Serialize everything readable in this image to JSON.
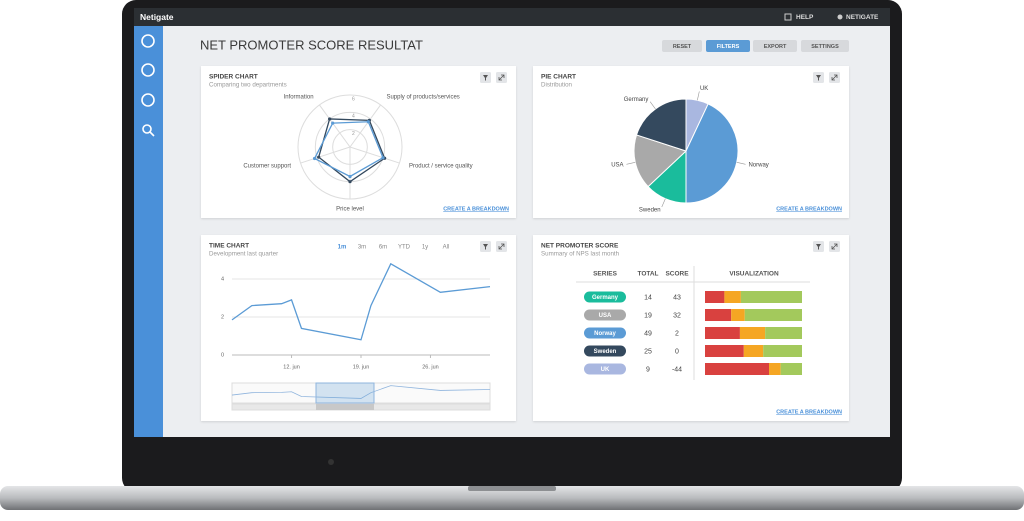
{
  "header": {
    "brand": "Netigate",
    "help": "HELP",
    "user": "NETIGATE"
  },
  "page_title": "NET PROMOTER SCORE RESULTAT",
  "toolbar": [
    "RESET",
    "FILTERS",
    "EXPORT",
    "SETTINGS"
  ],
  "chart_data": [
    {
      "type": "radar",
      "title": "SPIDER CHART",
      "subtitle": "Comparing two departments",
      "categories": [
        "Information",
        "Supply of products/services",
        "Product / service quality",
        "Price level",
        "Customer support"
      ],
      "ylim": [
        0,
        6
      ],
      "yticks": [
        2,
        4,
        6
      ],
      "series": [
        {
          "color": "#34495e",
          "values": [
            4.0,
            3.8,
            4.2,
            4.0,
            3.8
          ]
        },
        {
          "color": "#5b9bd5",
          "values": [
            3.4,
            3.6,
            4.0,
            3.4,
            4.3
          ]
        }
      ],
      "link": "CREATE A BREAKDOWN"
    },
    {
      "type": "pie",
      "title": "PIE CHART",
      "subtitle": "Distribution",
      "categories": [
        "UK",
        "Norway",
        "Sweden",
        "USA",
        "Germany"
      ],
      "values": [
        7,
        43,
        13,
        17,
        20
      ],
      "colors": [
        "#a9b7e0",
        "#5b9bd5",
        "#1abc9c",
        "#a9a9a9",
        "#34495e"
      ],
      "link": "CREATE A BREAKDOWN"
    },
    {
      "type": "line",
      "title": "TIME CHART",
      "subtitle": "Development last quarter",
      "ranges": [
        "1m",
        "3m",
        "6m",
        "YTD",
        "1y",
        "All"
      ],
      "active_range": 0,
      "x": [
        6,
        8,
        11,
        12,
        13,
        19,
        20,
        22,
        27,
        32
      ],
      "values": [
        1.85,
        2.6,
        2.7,
        2.9,
        1.4,
        0.8,
        2.6,
        4.8,
        3.3,
        3.6
      ],
      "xlim": [
        6,
        32
      ],
      "xticks": [
        {
          "value": 12,
          "label": "12. jun"
        },
        {
          "value": 19,
          "label": "19. jun"
        },
        {
          "value": 26,
          "label": "26. jun"
        }
      ],
      "ylim": [
        0,
        5
      ],
      "yticks": [
        0,
        2,
        4
      ],
      "color": "#5b9bd5",
      "grid": true
    },
    {
      "type": "nps",
      "title": "NET PROMOTER SCORE",
      "subtitle": "Summary of NPS last month",
      "columns": [
        "SERIES",
        "TOTAL",
        "SCORE",
        "VISUALIZATION"
      ],
      "segment_colors": [
        "#d9413f",
        "#f5a623",
        "#a3c95c"
      ],
      "rows": [
        {
          "series": "Germany",
          "color": "#1abc9c",
          "total": 14,
          "score": 43,
          "values": [
            20,
            17,
            63
          ]
        },
        {
          "series": "USA",
          "color": "#a9a9a9",
          "total": 19,
          "score": 32,
          "values": [
            27,
            14,
            59
          ]
        },
        {
          "series": "Norway",
          "color": "#5b9bd5",
          "total": 49,
          "score": 2,
          "values": [
            36,
            26,
            38
          ]
        },
        {
          "series": "Sweden",
          "color": "#34495e",
          "total": 25,
          "score": 0,
          "values": [
            40,
            20,
            40
          ]
        },
        {
          "series": "UK",
          "color": "#a9b7e0",
          "total": 9,
          "score": -44,
          "values": [
            66,
            12,
            22
          ]
        }
      ],
      "link": "CREATE A BREAKDOWN"
    }
  ]
}
